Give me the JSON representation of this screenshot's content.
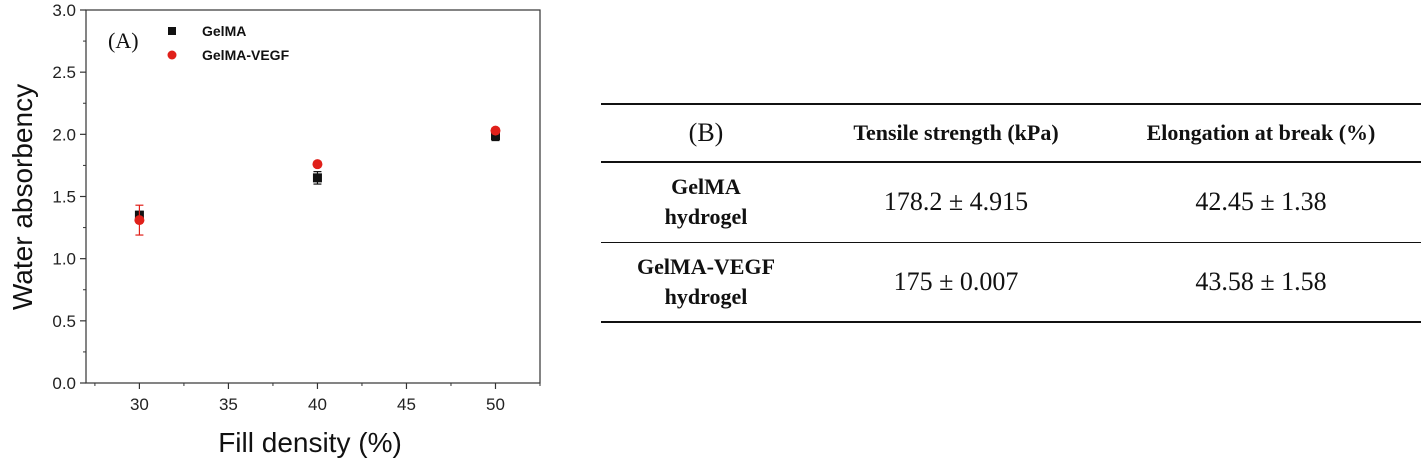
{
  "chart_data": {
    "type": "scatter",
    "panel_label": "(A)",
    "xlabel": "Fill density (%)",
    "ylabel": "Water absorbency",
    "xlim": [
      27,
      52.5
    ],
    "ylim": [
      0,
      3.0
    ],
    "xticks": [
      30,
      35,
      40,
      45,
      50
    ],
    "xtick_labels": [
      "30",
      "35",
      "40",
      "45",
      "50"
    ],
    "yticks": [
      0,
      0.5,
      1.0,
      1.5,
      2.0,
      2.5,
      3.0
    ],
    "ytick_labels": [
      "0.0",
      "0.5",
      "1.0",
      "1.5",
      "2.0",
      "2.5",
      "3.0"
    ],
    "legend_position": "top-left",
    "grid": false,
    "series": [
      {
        "name": "GelMA",
        "marker": "square",
        "color": "#111111",
        "x": [
          30,
          40,
          50
        ],
        "y": [
          1.35,
          1.65,
          1.99
        ],
        "err": [
          0.03,
          0.05,
          0.04
        ]
      },
      {
        "name": "GelMA-VEGF",
        "marker": "circle",
        "color": "#e0201a",
        "x": [
          30,
          40,
          50
        ],
        "y": [
          1.31,
          1.76,
          2.03
        ],
        "err": [
          0.12,
          0.02,
          0.02
        ]
      }
    ]
  },
  "table": {
    "panel_label": "(B)",
    "headers": [
      "Tensile strength (kPa)",
      "Elongation at break (%)"
    ],
    "rows": [
      {
        "name_line1": "GelMA",
        "name_line2": "hydrogel",
        "tensile": "178.2 ± 4.915",
        "elongation": "42.45 ± 1.38"
      },
      {
        "name_line1": "GelMA-VEGF",
        "name_line2": "hydrogel",
        "tensile": "175 ± 0.007",
        "elongation": "43.58 ± 1.58"
      }
    ]
  }
}
